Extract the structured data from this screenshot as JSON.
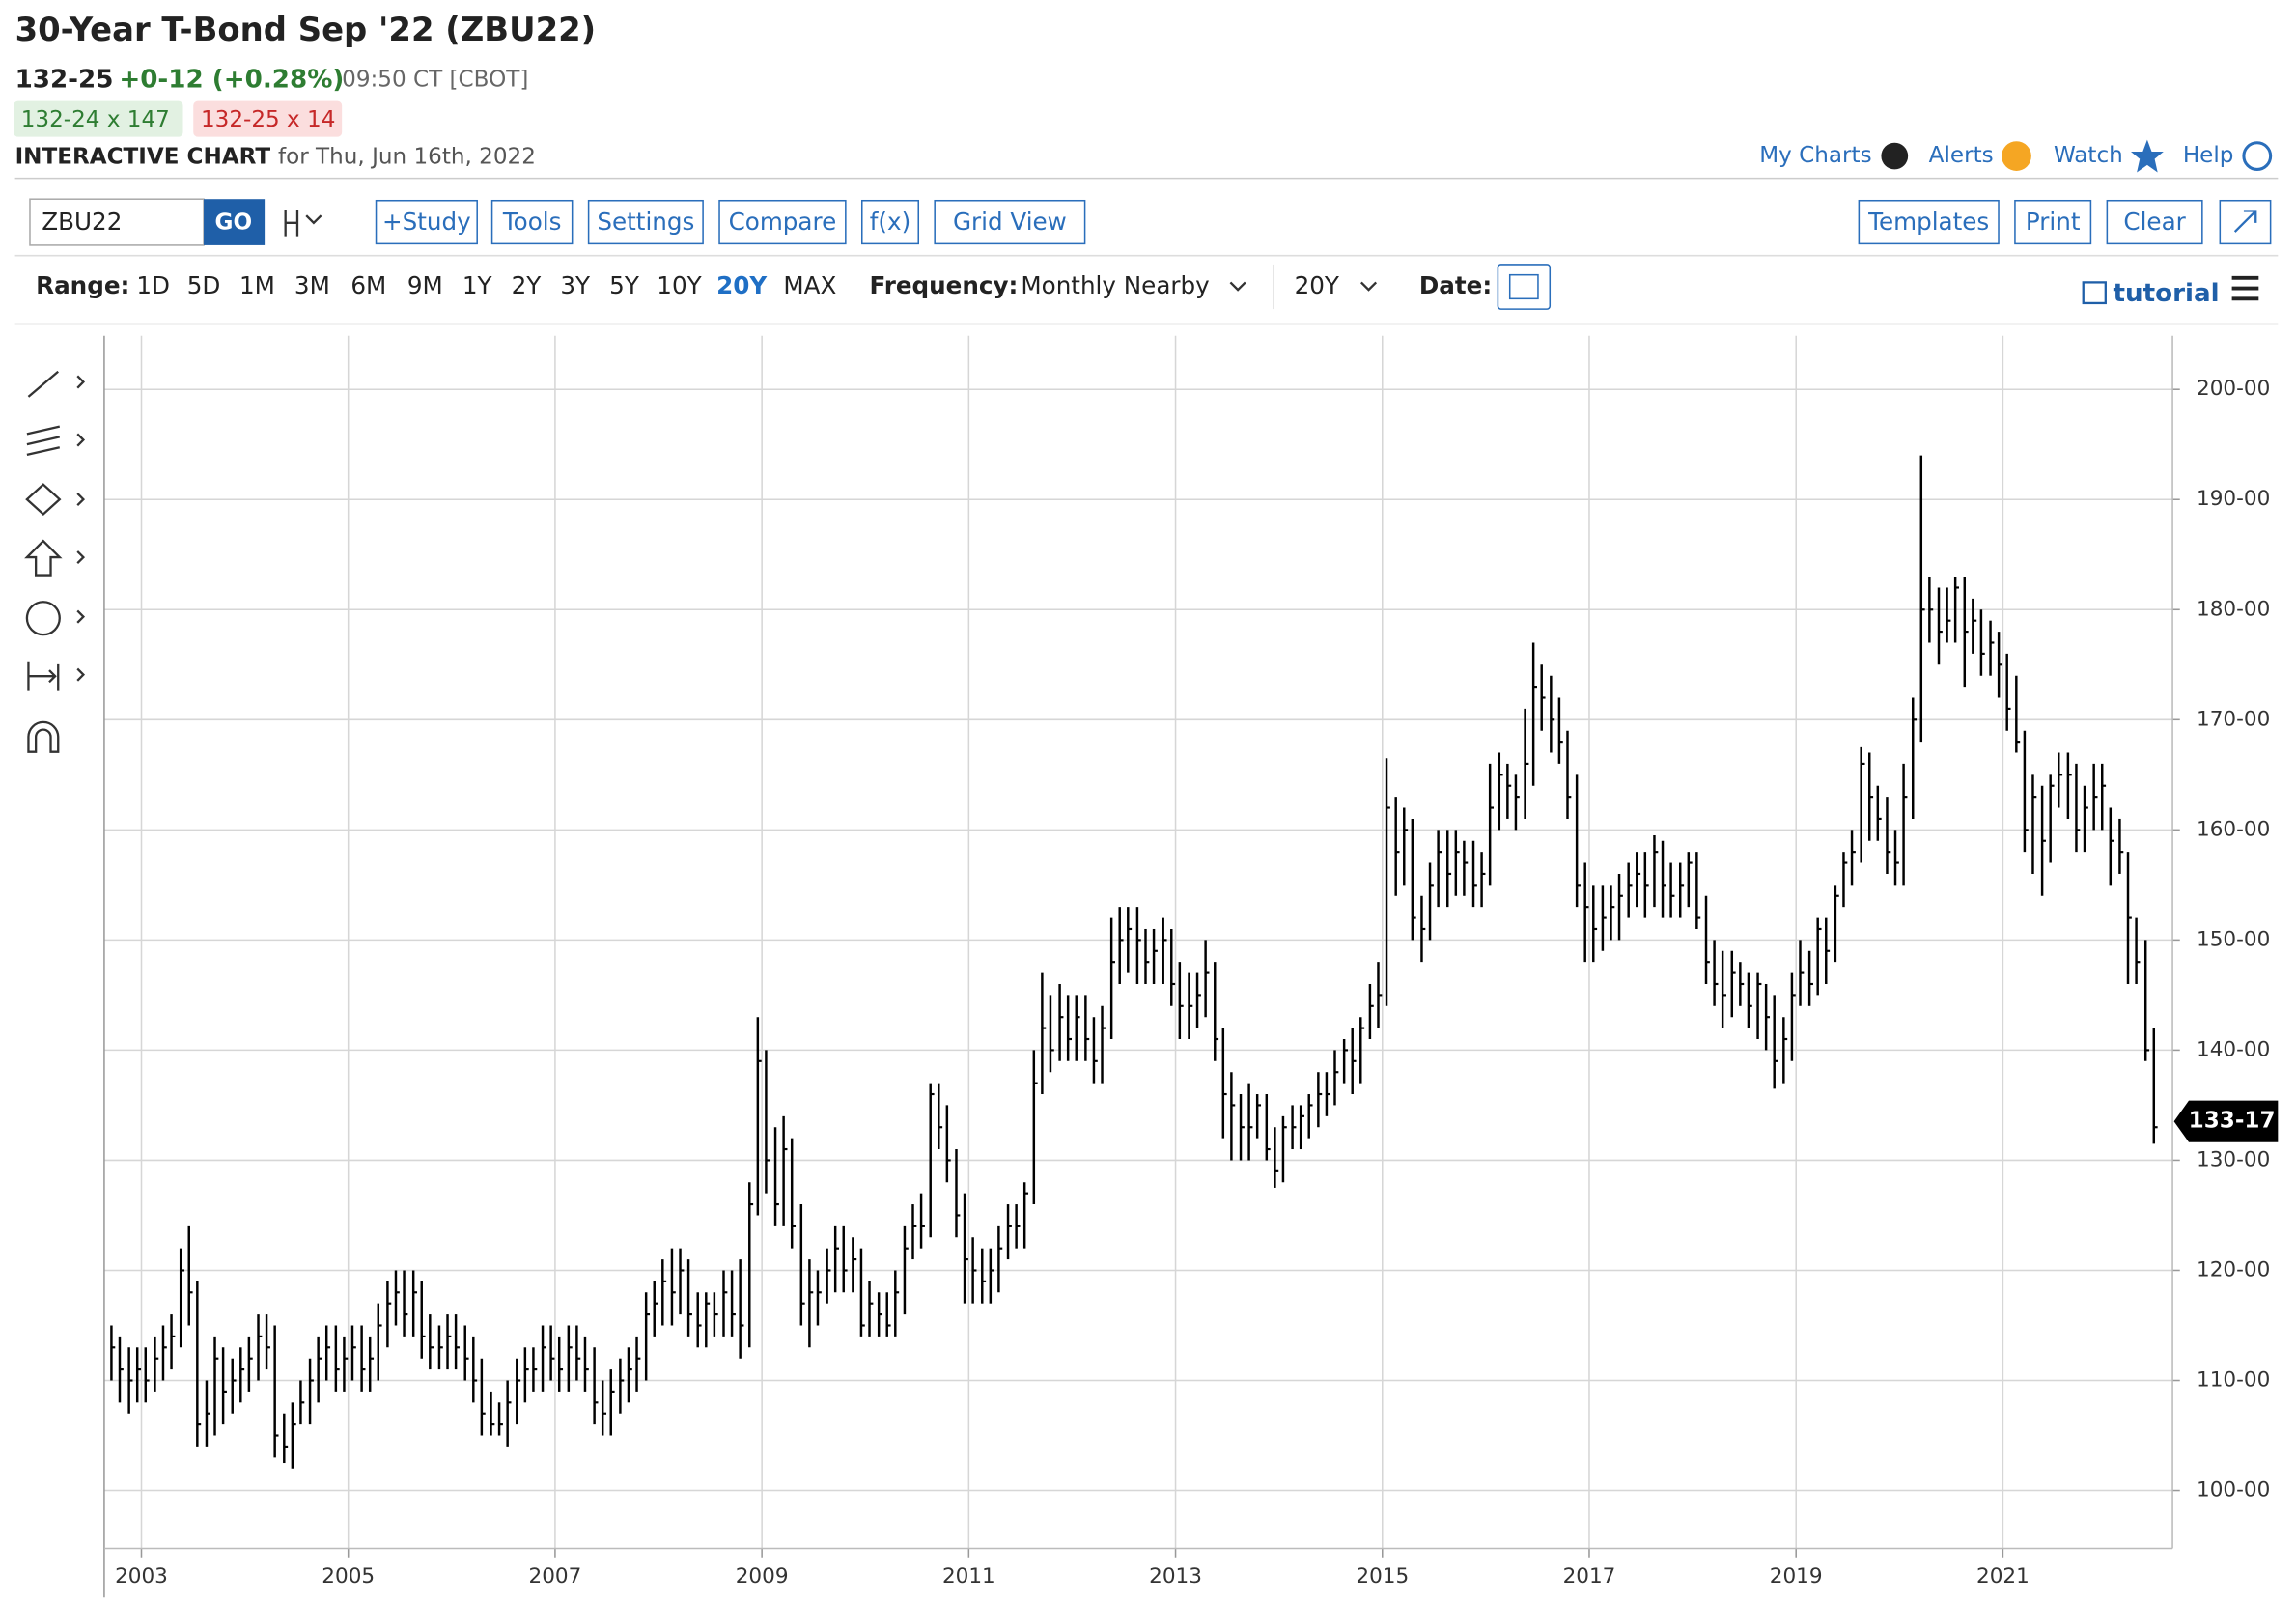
{
  "header": {
    "title": "30-Year T-Bond Sep '22 (ZBU22)",
    "last": "132-25",
    "change": "+0-12 (+0.28%)",
    "time": "09:50 CT [CBOT]",
    "bid": "132-24 x 147",
    "ask": "132-25 x 14",
    "chart_label": "INTERACTIVE CHART",
    "chart_date": "for Thu, Jun 16th, 2022"
  },
  "nav": [
    "My Charts",
    "Alerts",
    "Watch",
    "Help"
  ],
  "toolbar": {
    "symbol": "ZBU22",
    "go": "GO",
    "buttons": [
      "+Study",
      "Tools",
      "Settings",
      "Compare",
      "f(x)",
      "Grid View"
    ],
    "right_buttons": [
      "Templates",
      "Print",
      "Clear"
    ]
  },
  "range": {
    "label": "Range:",
    "options": [
      "1D",
      "5D",
      "1M",
      "3M",
      "6M",
      "9M",
      "1Y",
      "2Y",
      "3Y",
      "5Y",
      "10Y",
      "20Y",
      "MAX"
    ],
    "selected": "20Y"
  },
  "frequency": {
    "label": "Frequency:",
    "value": "Monthly Nearby",
    "period": "20Y"
  },
  "date_label": "Date:",
  "tutorial": "tutorial",
  "chart_data": {
    "type": "ohlc",
    "color": "#000000",
    "grid": true,
    "xlim": [
      2002.64,
      2022.64
    ],
    "xticks": [
      2003,
      2005,
      2007,
      2009,
      2011,
      2013,
      2015,
      2017,
      2019,
      2021
    ],
    "ylim": [
      94.74,
      204.86
    ],
    "yticks": [
      {
        "value": 100,
        "label": "100-00"
      },
      {
        "value": 110,
        "label": "110-00"
      },
      {
        "value": 120,
        "label": "120-00"
      },
      {
        "value": 130,
        "label": "130-00"
      },
      {
        "value": 140,
        "label": "140-00"
      },
      {
        "value": 150,
        "label": "150-00"
      },
      {
        "value": 160,
        "label": "160-00"
      },
      {
        "value": 170,
        "label": "170-00"
      },
      {
        "value": 180,
        "label": "180-00"
      },
      {
        "value": 190,
        "label": "190-00"
      },
      {
        "value": 200,
        "label": "200-00"
      }
    ],
    "last_price": {
      "value": 133.53,
      "label": "133-17"
    },
    "x": [
      2002.71,
      2002.79,
      2002.88,
      2002.96,
      2003.04,
      2003.13,
      2003.21,
      2003.29,
      2003.38,
      2003.46,
      2003.54,
      2003.63,
      2003.71,
      2003.79,
      2003.88,
      2003.96,
      2004.04,
      2004.13,
      2004.21,
      2004.29,
      2004.38,
      2004.46,
      2004.54,
      2004.63,
      2004.71,
      2004.79,
      2004.88,
      2004.96,
      2005.04,
      2005.13,
      2005.21,
      2005.29,
      2005.38,
      2005.46,
      2005.54,
      2005.63,
      2005.71,
      2005.79,
      2005.88,
      2005.96,
      2006.04,
      2006.13,
      2006.21,
      2006.29,
      2006.38,
      2006.46,
      2006.54,
      2006.63,
      2006.71,
      2006.79,
      2006.88,
      2006.96,
      2007.04,
      2007.13,
      2007.21,
      2007.29,
      2007.38,
      2007.46,
      2007.54,
      2007.63,
      2007.71,
      2007.79,
      2007.88,
      2007.96,
      2008.04,
      2008.13,
      2008.21,
      2008.29,
      2008.38,
      2008.46,
      2008.54,
      2008.63,
      2008.71,
      2008.79,
      2008.88,
      2008.96,
      2009.04,
      2009.13,
      2009.21,
      2009.29,
      2009.38,
      2009.46,
      2009.54,
      2009.63,
      2009.71,
      2009.79,
      2009.88,
      2009.96,
      2010.04,
      2010.13,
      2010.21,
      2010.29,
      2010.38,
      2010.46,
      2010.54,
      2010.63,
      2010.71,
      2010.79,
      2010.88,
      2010.96,
      2011.04,
      2011.13,
      2011.21,
      2011.29,
      2011.38,
      2011.46,
      2011.54,
      2011.63,
      2011.71,
      2011.79,
      2011.88,
      2011.96,
      2012.04,
      2012.13,
      2012.21,
      2012.29,
      2012.38,
      2012.46,
      2012.54,
      2012.63,
      2012.71,
      2012.79,
      2012.88,
      2012.96,
      2013.04,
      2013.13,
      2013.21,
      2013.29,
      2013.38,
      2013.46,
      2013.54,
      2013.63,
      2013.71,
      2013.79,
      2013.88,
      2013.96,
      2014.04,
      2014.13,
      2014.21,
      2014.29,
      2014.38,
      2014.46,
      2014.54,
      2014.63,
      2014.71,
      2014.79,
      2014.88,
      2014.96,
      2015.04,
      2015.13,
      2015.21,
      2015.29,
      2015.38,
      2015.46,
      2015.54,
      2015.63,
      2015.71,
      2015.79,
      2015.88,
      2015.96,
      2016.04,
      2016.13,
      2016.21,
      2016.29,
      2016.38,
      2016.46,
      2016.54,
      2016.63,
      2016.71,
      2016.79,
      2016.88,
      2016.96,
      2017.04,
      2017.13,
      2017.21,
      2017.29,
      2017.38,
      2017.46,
      2017.54,
      2017.63,
      2017.71,
      2017.79,
      2017.88,
      2017.96,
      2018.04,
      2018.13,
      2018.21,
      2018.29,
      2018.38,
      2018.46,
      2018.54,
      2018.63,
      2018.71,
      2018.79,
      2018.88,
      2018.96,
      2019.04,
      2019.13,
      2019.21,
      2019.29,
      2019.38,
      2019.46,
      2019.54,
      2019.63,
      2019.71,
      2019.79,
      2019.88,
      2019.96,
      2020.04,
      2020.13,
      2020.21,
      2020.29,
      2020.38,
      2020.46,
      2020.54,
      2020.63,
      2020.71,
      2020.79,
      2020.88,
      2020.96,
      2021.04,
      2021.13,
      2021.21,
      2021.29,
      2021.38,
      2021.46,
      2021.54,
      2021.63,
      2021.71,
      2021.79,
      2021.88,
      2021.96,
      2022.04,
      2022.13,
      2022.21,
      2022.29,
      2022.38,
      2022.46
    ],
    "high": [
      115,
      114,
      113,
      113,
      113,
      114,
      115,
      116,
      122,
      124,
      119,
      110,
      114,
      113,
      112,
      113,
      114,
      116,
      116,
      115,
      107,
      108,
      110,
      112,
      114,
      115,
      115,
      114,
      115,
      115,
      114,
      117,
      119,
      120,
      120,
      120,
      119,
      116,
      115,
      116,
      116,
      115,
      114,
      112,
      109,
      108,
      110,
      112,
      113,
      113,
      115,
      115,
      114,
      115,
      115,
      114,
      113,
      110,
      111,
      112,
      113,
      114,
      118,
      119,
      121,
      122,
      122,
      121,
      118,
      118,
      118,
      120,
      120,
      121,
      128,
      143,
      140,
      133,
      134,
      132,
      126,
      121,
      120,
      122,
      124,
      124,
      123,
      122,
      119,
      118,
      118,
      120,
      124,
      126,
      127,
      137,
      137,
      135,
      131,
      127,
      123,
      122,
      122,
      124,
      126,
      126,
      128,
      140,
      147,
      145,
      146,
      145,
      145,
      145,
      143,
      144,
      152,
      153,
      153,
      153,
      151,
      151,
      152,
      151,
      148,
      147,
      147,
      150,
      148,
      142,
      138,
      136,
      137,
      136,
      136,
      133,
      134,
      135,
      135,
      136,
      138,
      138,
      140,
      141,
      142,
      143,
      146,
      148,
      166.5,
      163,
      162,
      161,
      154,
      157,
      160,
      160,
      160,
      159,
      159,
      158,
      166,
      167,
      166,
      165,
      171,
      177,
      175,
      174,
      172,
      169,
      165,
      157,
      155,
      155,
      155,
      156,
      157,
      158,
      158,
      159.5,
      159,
      157,
      157,
      158,
      158,
      154,
      150,
      149,
      149,
      148,
      147,
      147,
      146,
      145,
      143,
      147,
      150,
      149,
      152,
      152,
      155,
      158,
      160,
      167.5,
      167,
      164,
      163,
      160,
      166,
      172,
      194,
      183,
      182,
      182,
      183,
      183,
      181,
      180,
      179,
      178,
      176,
      174,
      169,
      165,
      164,
      165,
      167,
      167,
      166,
      164,
      166,
      166,
      162,
      161,
      158,
      152,
      150,
      142
    ],
    "low": [
      110,
      108,
      107,
      108,
      108,
      109,
      110,
      111,
      113,
      115,
      104,
      104,
      105,
      106,
      107,
      108,
      109,
      110,
      111,
      103,
      102.5,
      102,
      106,
      106,
      108,
      110,
      109,
      109,
      110,
      109,
      109,
      110,
      113,
      115,
      114,
      114,
      112,
      111,
      111,
      111,
      111,
      110,
      108,
      105,
      105,
      105,
      104,
      106,
      108,
      109,
      109,
      110,
      109,
      109,
      110,
      109,
      106,
      105,
      105,
      107,
      108,
      109,
      110,
      114,
      115,
      115,
      116,
      114,
      113,
      113,
      114,
      114,
      114,
      112,
      113,
      125,
      127,
      124,
      124,
      122,
      115,
      113,
      115,
      117,
      118,
      118,
      118,
      114,
      114,
      114,
      114,
      114,
      116,
      121,
      122,
      123,
      131,
      128,
      123,
      117,
      117,
      117,
      117,
      118,
      121,
      122,
      122,
      126,
      136,
      138,
      139,
      139,
      139,
      139,
      137,
      137,
      141,
      146,
      147,
      146,
      146,
      146,
      146,
      144,
      141,
      141,
      142,
      143,
      139,
      132,
      130,
      130,
      130,
      132,
      130,
      127.5,
      128,
      131,
      131,
      132,
      133,
      134,
      135,
      137,
      136,
      137,
      141,
      142,
      144,
      154,
      155,
      150,
      148,
      150,
      153,
      153,
      154,
      154,
      153,
      153,
      155,
      160,
      161,
      160,
      161,
      164,
      169,
      167,
      166,
      161,
      153,
      148,
      148,
      149,
      150,
      150,
      152,
      153,
      152,
      153,
      152,
      152,
      152,
      153,
      151,
      146,
      144,
      142,
      143,
      144,
      142,
      141,
      140,
      136.5,
      137,
      139,
      144,
      144,
      145,
      146,
      148,
      153,
      155,
      157,
      159,
      159,
      156,
      155,
      155,
      161,
      168,
      177,
      175,
      177,
      177,
      173,
      176,
      174,
      174,
      172,
      169,
      167,
      158,
      156,
      154,
      157,
      162,
      161,
      158,
      158,
      160,
      160,
      155,
      156,
      146,
      146,
      139,
      131.5
    ],
    "close": [
      113,
      111,
      110,
      111,
      110,
      112,
      113,
      114,
      120,
      118,
      106,
      107,
      112,
      109,
      110,
      111,
      112,
      114,
      113,
      105,
      104,
      106,
      108,
      110,
      112,
      113,
      111,
      112,
      113,
      111,
      112,
      115,
      117,
      118,
      116,
      118,
      114,
      113,
      113,
      114,
      113,
      112,
      110,
      107,
      106,
      106,
      108,
      110,
      111,
      111,
      113,
      112,
      111,
      113,
      112,
      111,
      108,
      107,
      109,
      110,
      111,
      112,
      116,
      117,
      119,
      118,
      120,
      116,
      115,
      117,
      116,
      118,
      116,
      115,
      126,
      139,
      130,
      126,
      131,
      124,
      117,
      118,
      118,
      120,
      122,
      120,
      121,
      115,
      117,
      116,
      115,
      118,
      122,
      124,
      124,
      136,
      133,
      130,
      125,
      121,
      120,
      119,
      120,
      122,
      124,
      124,
      127,
      137,
      142,
      140,
      143,
      141,
      143,
      141,
      139,
      142,
      148,
      150,
      151,
      150,
      148,
      149,
      150,
      146,
      144,
      144,
      145,
      147,
      141,
      136,
      135,
      133,
      133,
      135,
      131,
      129,
      133,
      133,
      134,
      135,
      136,
      136,
      138,
      140,
      139,
      142,
      144,
      145,
      162,
      158,
      160,
      152,
      151,
      155,
      158,
      156,
      158,
      157,
      155,
      156,
      162,
      165,
      164,
      163,
      166,
      173,
      172,
      170,
      168,
      163,
      155,
      153,
      151,
      152,
      153,
      154,
      155,
      156,
      155,
      158,
      155,
      154,
      155,
      157,
      152,
      148,
      146,
      145,
      147,
      146,
      144,
      146,
      143,
      139,
      141,
      145,
      147,
      146,
      151,
      149,
      154,
      157,
      158,
      166,
      163,
      161,
      158,
      157,
      163,
      170,
      180,
      180,
      178,
      179,
      182,
      178,
      179,
      176,
      177,
      175,
      171,
      168,
      160,
      163,
      159,
      164,
      165,
      165,
      160,
      162,
      163,
      164,
      159,
      158,
      152,
      148,
      140,
      133
    ]
  }
}
